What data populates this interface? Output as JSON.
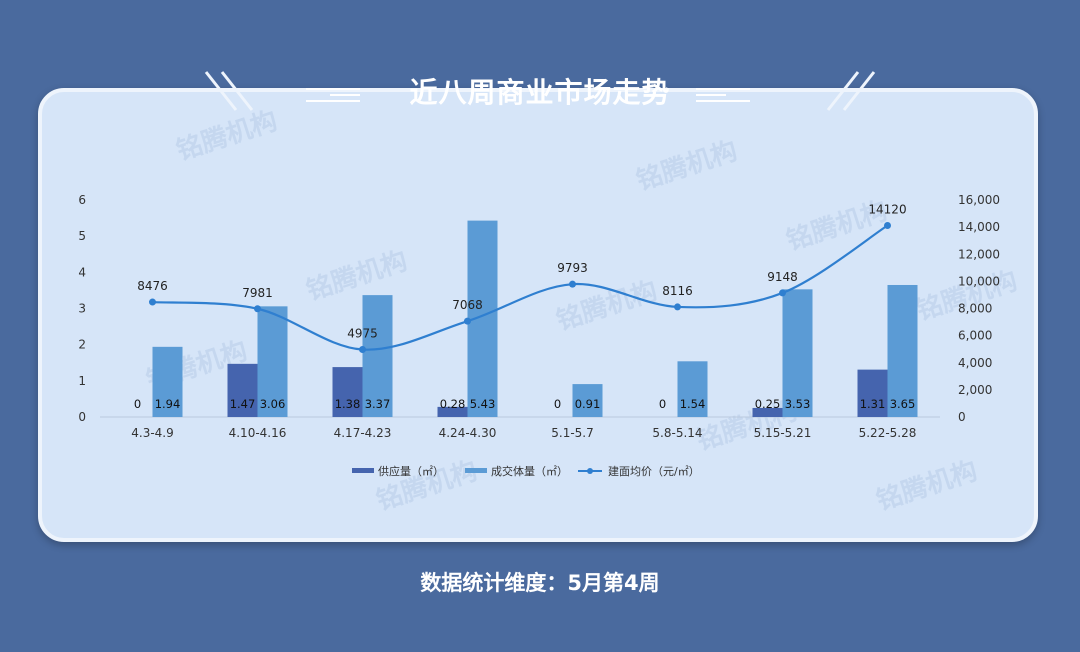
{
  "title": "近八周商业市场走势",
  "footer": "数据统计维度：5月第4周",
  "watermark": "铭腾机构",
  "colors": {
    "background": "#4a6a9e",
    "panel": "#d6e5f8",
    "supply": "#4564ae",
    "transaction": "#5b9bd5",
    "price": "#2f7fd0"
  },
  "chart_data": {
    "type": "bar",
    "categories": [
      "4.3-4.9",
      "4.10-4.16",
      "4.17-4.23",
      "4.24-4.30",
      "5.1-5.7",
      "5.8-5.14",
      "5.15-5.21",
      "5.22-5.28"
    ],
    "series": [
      {
        "name": "供应量（㎡）",
        "type": "bar",
        "axis": "left",
        "values": [
          0,
          1.47,
          1.38,
          0.28,
          0,
          0,
          0.25,
          1.31
        ],
        "labels": [
          "0",
          "1.47",
          "1.38",
          "0.28",
          "0",
          "0",
          "0.25",
          "1.31"
        ]
      },
      {
        "name": "成交体量（㎡）",
        "type": "bar",
        "axis": "left",
        "values": [
          1.94,
          3.06,
          3.37,
          5.43,
          0.91,
          1.54,
          3.53,
          3.65
        ],
        "labels": [
          "1.94",
          "3.06",
          "3.37",
          "5.43",
          "0.91",
          "1.54",
          "3.53",
          "3.65"
        ]
      },
      {
        "name": "建面均价（元/㎡）",
        "type": "line",
        "axis": "right",
        "values": [
          8476,
          7981,
          4975,
          7068,
          9793,
          8116,
          9148,
          14120
        ],
        "labels": [
          "8476",
          "7981",
          "4975",
          "7068",
          "9793",
          "8116",
          "9148",
          "14120"
        ]
      }
    ],
    "y_left": {
      "ylim": [
        0,
        6
      ],
      "ticks": [
        "0",
        "1",
        "2",
        "3",
        "4",
        "5",
        "6"
      ]
    },
    "y_right": {
      "ylim": [
        0,
        16000
      ],
      "ticks": [
        "0",
        "2,000",
        "4,000",
        "6,000",
        "8,000",
        "10,000",
        "12,000",
        "14,000",
        "16,000"
      ]
    },
    "legend": {
      "placement": "bottom"
    },
    "grid": false
  }
}
